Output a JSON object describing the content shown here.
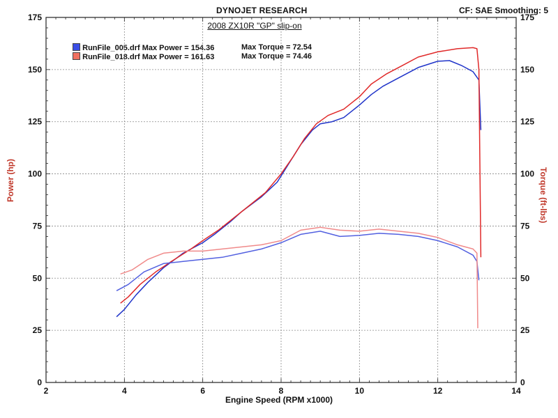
{
  "header": {
    "brand": "DYNOJET RESEARCH",
    "cf_line": "CF: SAE  Smoothing: 5"
  },
  "chart_data": {
    "type": "line",
    "title": "2008 ZX10R \"GP\" slip-on",
    "xlabel": "Engine Speed (RPM x1000)",
    "ylabel_left": "Power (hp)",
    "ylabel_right": "Torque (ft-lbs)",
    "xlim": [
      2,
      14
    ],
    "ylim": [
      0,
      175
    ],
    "x_ticks": [
      "2",
      "4",
      "6",
      "8",
      "10",
      "12",
      "14"
    ],
    "y_ticks_left": [
      "0",
      "25",
      "50",
      "75",
      "100",
      "125",
      "150",
      "175"
    ],
    "y_ticks_right": [
      "0",
      "25",
      "50",
      "75",
      "100",
      "125",
      "150",
      "175"
    ],
    "grid": true,
    "legend": [
      {
        "text": "RunFile_005.drf Max Power = 154.36",
        "torque_text": "Max Torque = 72.54",
        "color": "#2a3fd6"
      },
      {
        "text": "RunFile_018.drf Max Power = 161.63",
        "torque_text": "Max Torque = 74.46",
        "color": "#e03333"
      }
    ],
    "series": [
      {
        "kind": "power",
        "color": "#1f33c9",
        "points": [
          [
            3.8,
            31.5
          ],
          [
            4.0,
            35
          ],
          [
            4.3,
            42
          ],
          [
            4.6,
            48
          ],
          [
            5.0,
            55
          ],
          [
            5.5,
            62
          ],
          [
            6.0,
            67
          ],
          [
            6.3,
            71
          ],
          [
            6.7,
            77
          ],
          [
            7.0,
            82
          ],
          [
            7.5,
            89
          ],
          [
            7.9,
            96
          ],
          [
            8.2,
            105
          ],
          [
            8.5,
            114
          ],
          [
            8.8,
            121
          ],
          [
            9.0,
            124
          ],
          [
            9.3,
            125
          ],
          [
            9.6,
            127
          ],
          [
            10.0,
            133
          ],
          [
            10.3,
            138
          ],
          [
            10.6,
            142
          ],
          [
            11.0,
            146
          ],
          [
            11.5,
            151
          ],
          [
            12.0,
            154
          ],
          [
            12.3,
            154.3
          ],
          [
            12.6,
            152
          ],
          [
            12.9,
            149
          ],
          [
            13.05,
            145
          ],
          [
            13.1,
            121
          ]
        ]
      },
      {
        "kind": "power",
        "color": "#e02929",
        "points": [
          [
            3.9,
            38
          ],
          [
            4.1,
            41
          ],
          [
            4.4,
            47
          ],
          [
            4.8,
            53
          ],
          [
            5.2,
            58
          ],
          [
            5.7,
            64
          ],
          [
            6.0,
            68
          ],
          [
            6.4,
            73
          ],
          [
            6.8,
            79
          ],
          [
            7.2,
            85
          ],
          [
            7.6,
            91
          ],
          [
            8.0,
            100
          ],
          [
            8.3,
            108
          ],
          [
            8.6,
            117
          ],
          [
            8.9,
            124
          ],
          [
            9.2,
            128
          ],
          [
            9.6,
            131
          ],
          [
            10.0,
            137
          ],
          [
            10.3,
            143
          ],
          [
            10.7,
            148
          ],
          [
            11.1,
            152
          ],
          [
            11.5,
            156
          ],
          [
            12.0,
            158.5
          ],
          [
            12.5,
            160
          ],
          [
            12.9,
            160.5
          ],
          [
            13.0,
            160
          ],
          [
            13.05,
            150
          ],
          [
            13.1,
            60
          ]
        ]
      },
      {
        "kind": "torque",
        "color": "#5260e0",
        "points": [
          [
            3.8,
            44
          ],
          [
            4.1,
            47
          ],
          [
            4.5,
            53
          ],
          [
            5.0,
            57
          ],
          [
            5.5,
            58
          ],
          [
            6.0,
            59
          ],
          [
            6.5,
            60
          ],
          [
            7.0,
            62
          ],
          [
            7.5,
            64
          ],
          [
            8.0,
            67
          ],
          [
            8.5,
            71
          ],
          [
            9.0,
            72.5
          ],
          [
            9.5,
            70
          ],
          [
            10.0,
            70.5
          ],
          [
            10.5,
            71.5
          ],
          [
            11.0,
            71
          ],
          [
            11.5,
            70
          ],
          [
            12.0,
            68
          ],
          [
            12.5,
            65
          ],
          [
            12.9,
            61
          ],
          [
            13.0,
            58
          ],
          [
            13.05,
            49
          ]
        ]
      },
      {
        "kind": "torque",
        "color": "#f08a8a",
        "points": [
          [
            3.9,
            52
          ],
          [
            4.2,
            54
          ],
          [
            4.6,
            59
          ],
          [
            5.0,
            62
          ],
          [
            5.5,
            63
          ],
          [
            6.0,
            63
          ],
          [
            6.5,
            64
          ],
          [
            7.0,
            65
          ],
          [
            7.5,
            66
          ],
          [
            8.0,
            68
          ],
          [
            8.5,
            73
          ],
          [
            9.0,
            74.4
          ],
          [
            9.5,
            73
          ],
          [
            10.0,
            72.5
          ],
          [
            10.5,
            73.5
          ],
          [
            11.0,
            72.5
          ],
          [
            11.5,
            71.5
          ],
          [
            12.0,
            69.5
          ],
          [
            12.5,
            66
          ],
          [
            12.9,
            64
          ],
          [
            13.0,
            62
          ],
          [
            13.02,
            26
          ]
        ]
      }
    ]
  }
}
